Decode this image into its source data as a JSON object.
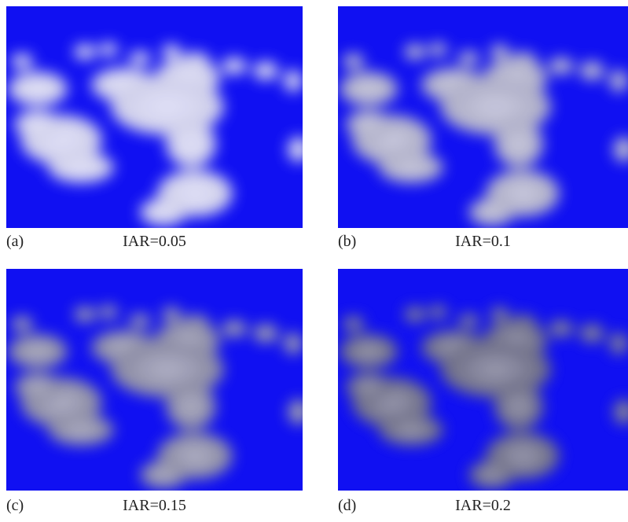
{
  "panels": [
    {
      "label": "(a)",
      "caption": "IAR=0.05"
    },
    {
      "label": "(b)",
      "caption": "IAR=0.1"
    },
    {
      "label": "(c)",
      "caption": "IAR=0.15"
    },
    {
      "label": "(d)",
      "caption": "IAR=0.2"
    }
  ]
}
